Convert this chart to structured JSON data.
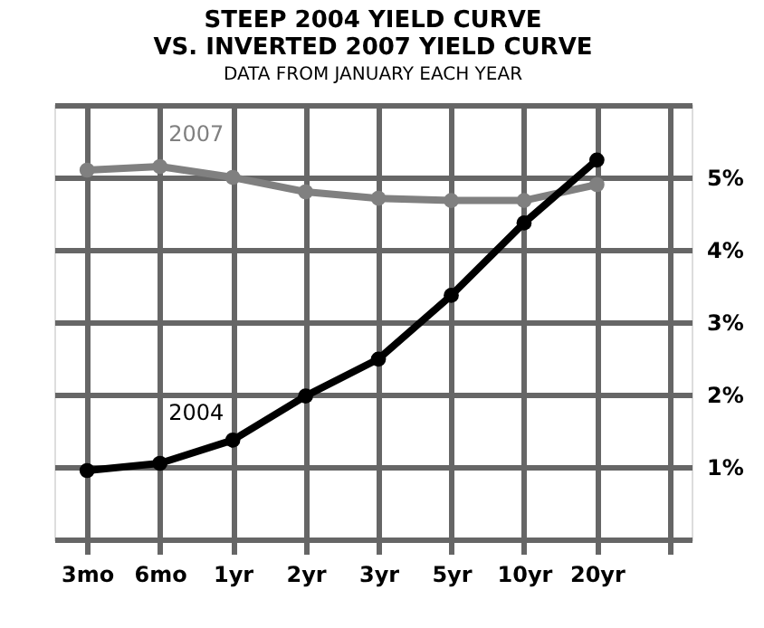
{
  "chart_data": {
    "type": "line",
    "title": "STEEP 2004 YIELD CURVE\nVS. INVERTED 2007 YIELD CURVE",
    "subtitle": "DATA FROM JANUARY EACH YEAR",
    "categories": [
      "3mo",
      "6mo",
      "1yr",
      "2yr",
      "3yr",
      "5yr",
      "10yr",
      "20yr"
    ],
    "series": [
      {
        "name": "2007",
        "color": "#808080",
        "values": [
          5.1,
          5.15,
          5.0,
          4.8,
          4.71,
          4.68,
          4.68,
          4.9
        ]
      },
      {
        "name": "2004",
        "color": "#000000",
        "values": [
          0.95,
          1.05,
          1.37,
          1.98,
          2.49,
          3.37,
          4.37,
          5.24
        ]
      }
    ],
    "ylim": [
      0,
      6
    ],
    "yticks": [
      {
        "value": 0,
        "label": null
      },
      {
        "value": 1,
        "label": "1%"
      },
      {
        "value": 2,
        "label": "2%"
      },
      {
        "value": 3,
        "label": "3%"
      },
      {
        "value": 4,
        "label": "4%"
      },
      {
        "value": 5,
        "label": "5%"
      },
      {
        "value": 6,
        "label": null
      }
    ],
    "grid": true,
    "marker": "circle",
    "line_style": "solid"
  }
}
